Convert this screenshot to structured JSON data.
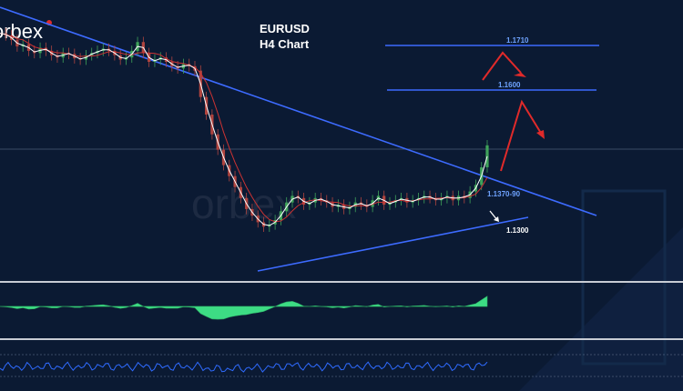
{
  "brand": "orbex",
  "watermark": "orbex",
  "title": "EURUSD",
  "subtitle": "H4 Chart",
  "colors": {
    "background": "#0b1a33",
    "trendline": "#3d6bff",
    "candle_up": "#3fa35a",
    "candle_down": "#b0443f",
    "ma_fast": "#ffffff",
    "ma_slow": "#cc3333",
    "histogram": "#3ddc84",
    "oscillator": "#2f6bff",
    "projection_arrow": "#e02a2a",
    "divider": "#c8ccd4"
  },
  "chart_data": {
    "type": "line",
    "symbol": "EURUSD",
    "timeframe": "H4",
    "ylim": [
      1.116,
      1.176
    ],
    "series": [
      {
        "values": [
          1.1705,
          1.17,
          1.169,
          1.1675,
          1.168,
          1.1665,
          1.166,
          1.1672,
          1.1665,
          1.1655,
          1.165,
          1.166,
          1.1658,
          1.1648,
          1.1645,
          1.1655,
          1.166,
          1.1665,
          1.167,
          1.1665,
          1.1655,
          1.1645,
          1.165,
          1.1665,
          1.1685,
          1.166,
          1.164,
          1.1645,
          1.165,
          1.164,
          1.163,
          1.1625,
          1.1635,
          1.163,
          1.162,
          1.156,
          1.152,
          1.1475,
          1.144,
          1.1405,
          1.138,
          1.1355,
          1.133,
          1.1305,
          1.129,
          1.1275,
          1.1265,
          1.127,
          1.128,
          1.13,
          1.132,
          1.1335,
          1.133,
          1.1315,
          1.132,
          1.133,
          1.1325,
          1.132,
          1.131,
          1.1315,
          1.1305,
          1.131,
          1.132,
          1.1315,
          1.131,
          1.1325,
          1.1335,
          1.1315,
          1.132,
          1.1325,
          1.133,
          1.132,
          1.1325,
          1.133,
          1.1335,
          1.133,
          1.1325,
          1.133,
          1.1335,
          1.1325,
          1.1335,
          1.133,
          1.1345,
          1.136,
          1.14,
          1.145
        ]
      }
    ],
    "levels": [
      {
        "label": "1.1710",
        "value": 1.171
      },
      {
        "label": "1.1600",
        "value": 1.16
      },
      {
        "label": "1.1370-90",
        "value": 1.138
      },
      {
        "label": "1.1300",
        "value": 1.13
      }
    ]
  }
}
